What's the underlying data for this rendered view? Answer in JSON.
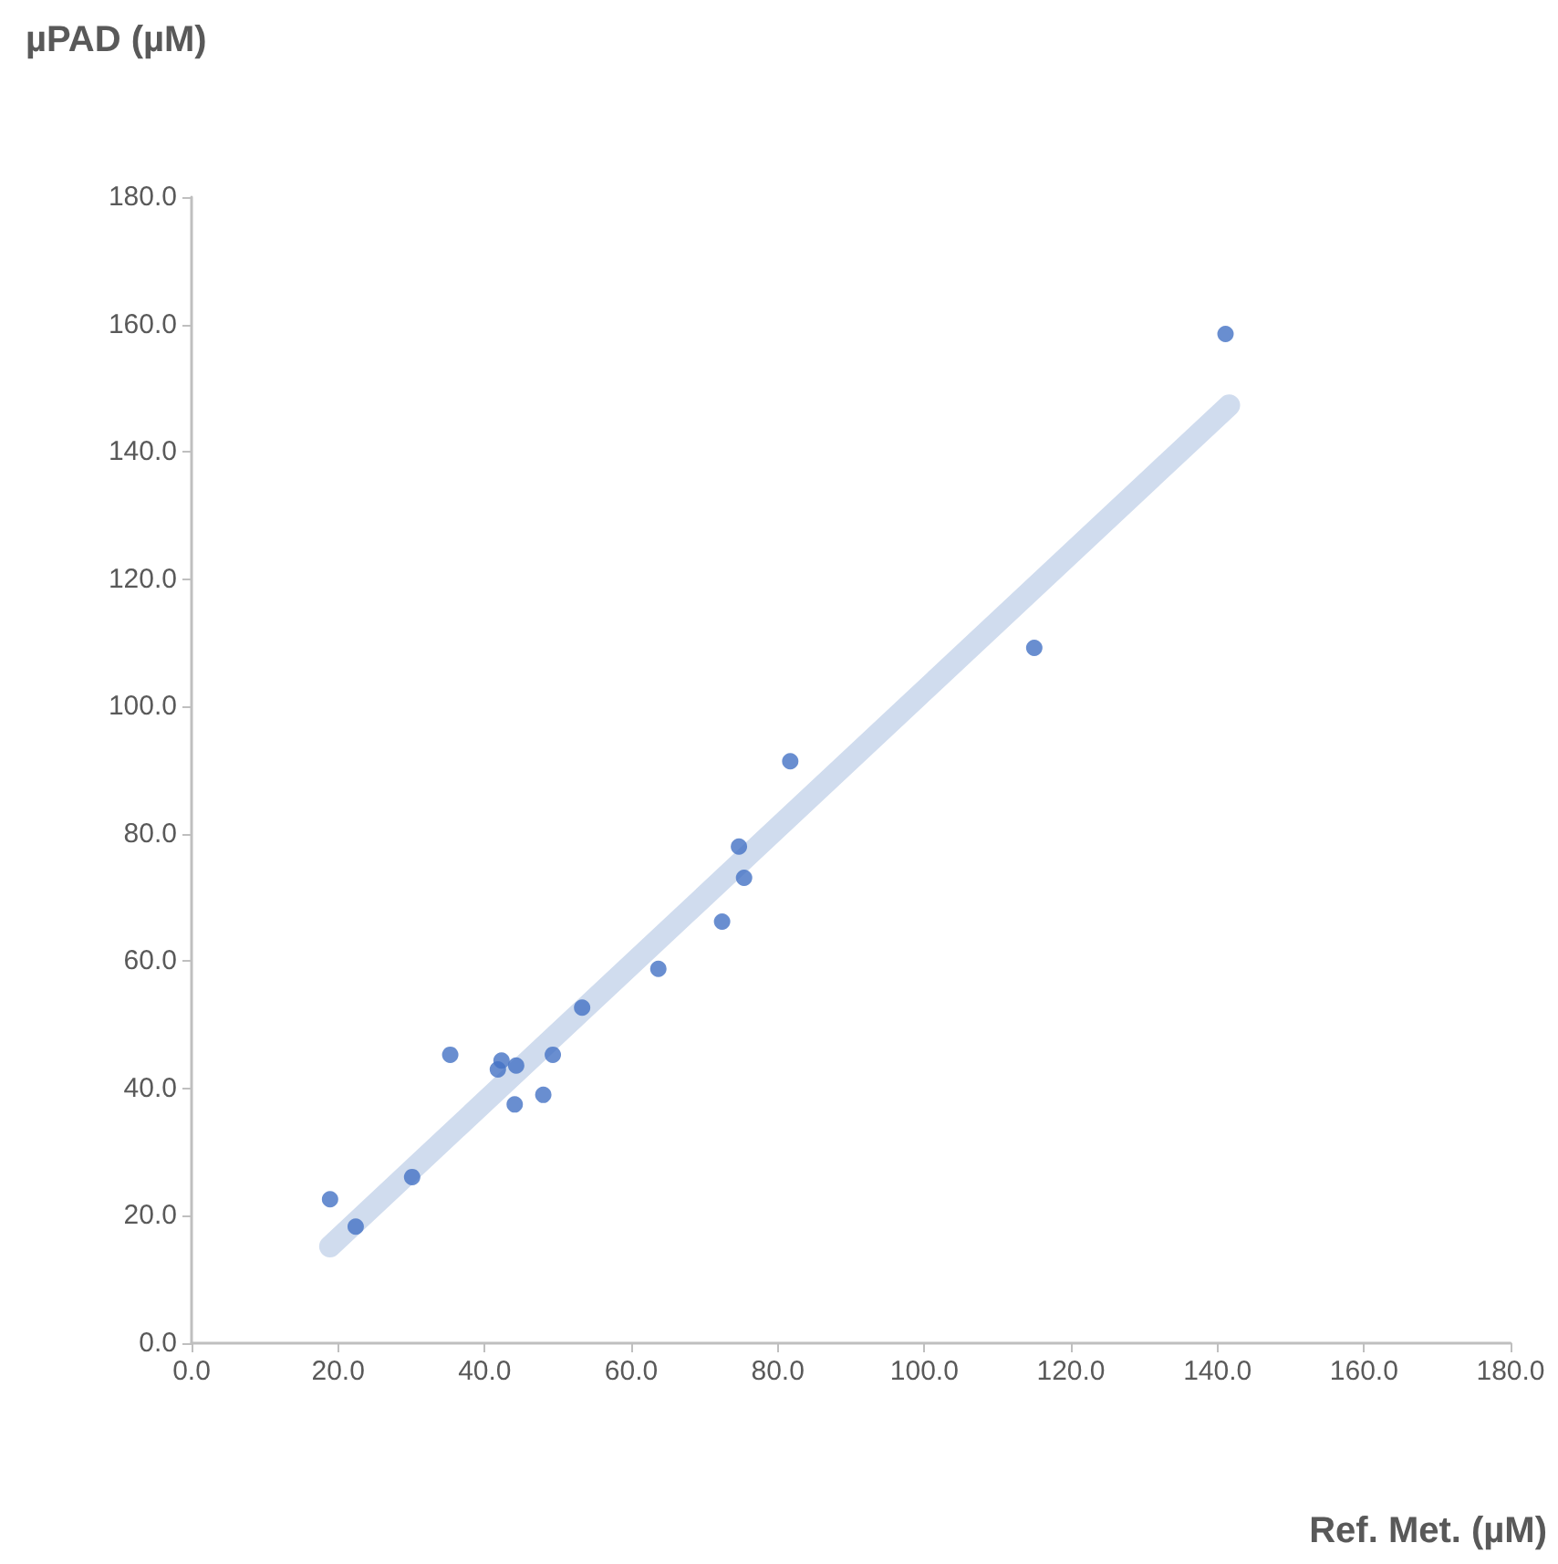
{
  "chart_data": {
    "type": "scatter",
    "xlabel": "Ref. Met. (µM)",
    "ylabel": "µPAD (µM)",
    "xlim": [
      0,
      180
    ],
    "ylim": [
      0,
      180
    ],
    "xticks": [
      {
        "value": 0,
        "label": "0.0"
      },
      {
        "value": 20,
        "label": "20.0"
      },
      {
        "value": 40,
        "label": "40.0"
      },
      {
        "value": 60,
        "label": "60.0"
      },
      {
        "value": 80,
        "label": "80.0"
      },
      {
        "value": 100,
        "label": "100.0"
      },
      {
        "value": 120,
        "label": "120.0"
      },
      {
        "value": 140,
        "label": "140.0"
      },
      {
        "value": 160,
        "label": "160.0"
      },
      {
        "value": 180,
        "label": "180.0"
      }
    ],
    "yticks": [
      {
        "value": 0,
        "label": "0.0"
      },
      {
        "value": 20,
        "label": "20.0"
      },
      {
        "value": 40,
        "label": "40.0"
      },
      {
        "value": 60,
        "label": "60.0"
      },
      {
        "value": 80,
        "label": "80.0"
      },
      {
        "value": 100,
        "label": "100.0"
      },
      {
        "value": 120,
        "label": "120.0"
      },
      {
        "value": 140,
        "label": "140.0"
      },
      {
        "value": 160,
        "label": "160.0"
      },
      {
        "value": 180,
        "label": "180.0"
      }
    ],
    "grid": false,
    "marker": "circle",
    "series": [
      {
        "type": "line",
        "color": "#d0dcee",
        "line_style": "solid",
        "marker": "none",
        "x": [
          18.9,
          141.6
        ],
        "values": [
          15.2,
          147.3
        ]
      },
      {
        "color": "#4472c4",
        "x": [
          18.9,
          22.4,
          30.1,
          35.3,
          41.8,
          42.3,
          44.3,
          44.1,
          48.0,
          49.3,
          53.3,
          63.7,
          72.4,
          74.7,
          75.4,
          81.7,
          115.0,
          141.1
        ],
        "values": [
          22.6,
          18.3,
          26.1,
          45.3,
          43.0,
          44.4,
          43.6,
          37.5,
          39.0,
          45.3,
          52.7,
          58.8,
          66.2,
          78.0,
          73.1,
          91.4,
          109.2,
          158.5
        ]
      }
    ]
  }
}
